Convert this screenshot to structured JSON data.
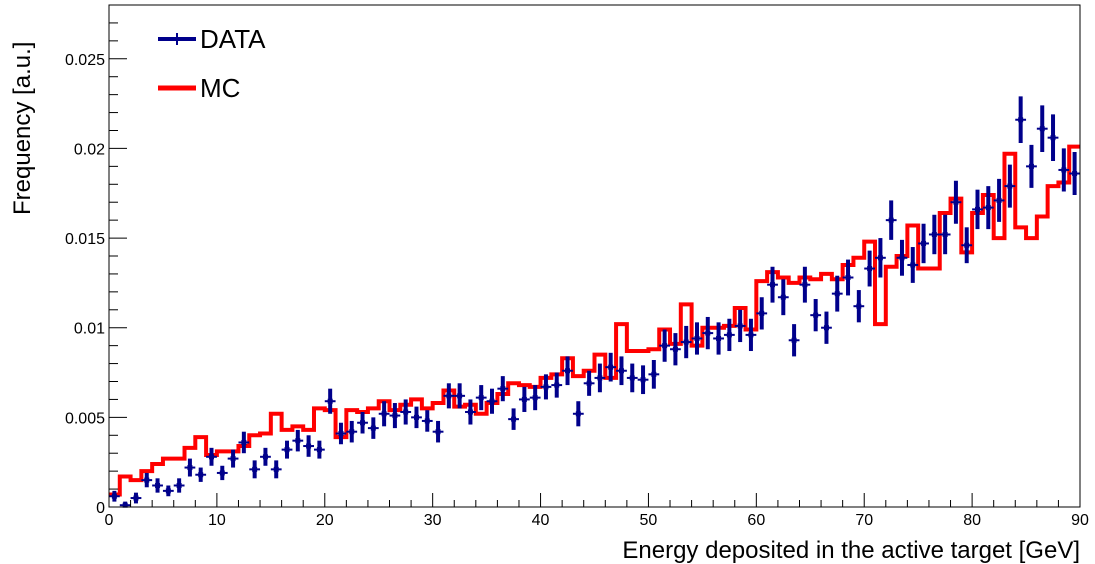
{
  "chart_data": {
    "type": "line",
    "xlabel": "Energy deposited in the active target [GeV]",
    "ylabel": "Frequency [a.u.]",
    "xlim": [
      0,
      90
    ],
    "ylim": [
      0,
      0.028
    ],
    "x_ticks": [
      "0",
      "10",
      "20",
      "30",
      "40",
      "50",
      "60",
      "70",
      "80",
      "90"
    ],
    "y_ticks": [
      "0",
      "0.005",
      "0.01",
      "0.015",
      "0.02",
      "0.025"
    ],
    "legend_position": "top-left",
    "colors": {
      "data": "#00008b",
      "mc": "#ff0000"
    },
    "series": [
      {
        "name": "DATA",
        "style": "points-with-error-bars",
        "x": [
          0.5,
          1.5,
          2.5,
          3.5,
          4.5,
          5.5,
          6.5,
          7.5,
          8.5,
          9.5,
          10.5,
          11.5,
          12.5,
          13.5,
          14.5,
          15.5,
          16.5,
          17.5,
          18.5,
          19.5,
          20.5,
          21.5,
          22.5,
          23.5,
          24.5,
          25.5,
          26.5,
          27.5,
          28.5,
          29.5,
          30.5,
          31.5,
          32.5,
          33.5,
          34.5,
          35.5,
          36.5,
          37.5,
          38.5,
          39.5,
          40.5,
          41.5,
          42.5,
          43.5,
          44.5,
          45.5,
          46.5,
          47.5,
          48.5,
          49.5,
          50.5,
          51.5,
          52.5,
          53.5,
          54.5,
          55.5,
          56.5,
          57.5,
          58.5,
          59.5,
          60.5,
          61.5,
          62.5,
          63.5,
          64.5,
          65.5,
          66.5,
          67.5,
          68.5,
          69.5,
          70.5,
          71.5,
          72.5,
          73.5,
          74.5,
          75.5,
          76.5,
          77.5,
          78.5,
          79.5,
          80.5,
          81.5,
          82.5,
          83.5,
          84.5,
          85.5,
          86.5,
          87.5,
          88.5,
          89.5
        ],
        "y": [
          0.0006,
          0.0001,
          0.0005,
          0.0015,
          0.0012,
          0.0009,
          0.0012,
          0.0022,
          0.0018,
          0.0028,
          0.0019,
          0.0027,
          0.0036,
          0.0021,
          0.0028,
          0.0021,
          0.0032,
          0.0037,
          0.0034,
          0.0032,
          0.0059,
          0.0041,
          0.0042,
          0.0047,
          0.0044,
          0.0052,
          0.0051,
          0.0053,
          0.005,
          0.0048,
          0.0042,
          0.0062,
          0.0062,
          0.0053,
          0.0061,
          0.0059,
          0.0066,
          0.0049,
          0.006,
          0.0061,
          0.0067,
          0.0068,
          0.0076,
          0.0052,
          0.0069,
          0.0072,
          0.0078,
          0.0076,
          0.0072,
          0.0071,
          0.0074,
          0.009,
          0.0088,
          0.0092,
          0.0094,
          0.0097,
          0.0094,
          0.0096,
          0.0101,
          0.0096,
          0.0108,
          0.0124,
          0.0117,
          0.0093,
          0.0124,
          0.0107,
          0.01,
          0.0119,
          0.0128,
          0.0112,
          0.0133,
          0.0139,
          0.016,
          0.0139,
          0.0135,
          0.0147,
          0.0152,
          0.0152,
          0.017,
          0.0146,
          0.0166,
          0.0167,
          0.0171,
          0.0179,
          0.0216,
          0.019,
          0.0211,
          0.0206,
          0.0188,
          0.0186
        ],
        "yerr": [
          0.0003,
          0.0002,
          0.0003,
          0.0004,
          0.0004,
          0.0003,
          0.0004,
          0.0005,
          0.0004,
          0.0005,
          0.0004,
          0.0005,
          0.0006,
          0.0005,
          0.0005,
          0.0005,
          0.0005,
          0.0006,
          0.0006,
          0.0005,
          0.0007,
          0.0006,
          0.0006,
          0.0006,
          0.0006,
          0.0007,
          0.0007,
          0.0007,
          0.0006,
          0.0006,
          0.0006,
          0.0007,
          0.0007,
          0.0007,
          0.0007,
          0.0007,
          0.0007,
          0.0006,
          0.0007,
          0.0007,
          0.0007,
          0.0007,
          0.0008,
          0.0007,
          0.0007,
          0.0008,
          0.0008,
          0.0008,
          0.0008,
          0.0008,
          0.0008,
          0.0009,
          0.0009,
          0.0009,
          0.0009,
          0.0009,
          0.0009,
          0.0009,
          0.0009,
          0.0009,
          0.0009,
          0.001,
          0.001,
          0.0009,
          0.001,
          0.0009,
          0.0009,
          0.001,
          0.001,
          0.0009,
          0.001,
          0.0011,
          0.0011,
          0.001,
          0.001,
          0.0011,
          0.0011,
          0.0011,
          0.0012,
          0.001,
          0.0011,
          0.0012,
          0.0012,
          0.0012,
          0.0013,
          0.0012,
          0.0013,
          0.0013,
          0.0012,
          0.0012
        ]
      },
      {
        "name": "MC",
        "style": "step-histogram",
        "x": [
          0.5,
          1.5,
          2.5,
          3.5,
          4.5,
          5.5,
          6.5,
          7.5,
          8.5,
          9.5,
          10.5,
          11.5,
          12.5,
          13.5,
          14.5,
          15.5,
          16.5,
          17.5,
          18.5,
          19.5,
          20.5,
          21.5,
          22.5,
          23.5,
          24.5,
          25.5,
          26.5,
          27.5,
          28.5,
          29.5,
          30.5,
          31.5,
          32.5,
          33.5,
          34.5,
          35.5,
          36.5,
          37.5,
          38.5,
          39.5,
          40.5,
          41.5,
          42.5,
          43.5,
          44.5,
          45.5,
          46.5,
          47.5,
          48.5,
          49.5,
          50.5,
          51.5,
          52.5,
          53.5,
          54.5,
          55.5,
          56.5,
          57.5,
          58.5,
          59.5,
          60.5,
          61.5,
          62.5,
          63.5,
          64.5,
          65.5,
          66.5,
          67.5,
          68.5,
          69.5,
          70.5,
          71.5,
          72.5,
          73.5,
          74.5,
          75.5,
          76.5,
          77.5,
          78.5,
          79.5,
          80.5,
          81.5,
          82.5,
          83.5,
          84.5,
          85.5,
          86.5,
          87.5,
          88.5,
          89.5
        ],
        "y": [
          0.0007,
          0.0017,
          0.0015,
          0.002,
          0.0024,
          0.0027,
          0.0027,
          0.0033,
          0.0039,
          0.0029,
          0.0031,
          0.0031,
          0.0034,
          0.004,
          0.0041,
          0.0052,
          0.0043,
          0.0045,
          0.0043,
          0.0055,
          0.0054,
          0.0039,
          0.0054,
          0.0053,
          0.0055,
          0.0059,
          0.0054,
          0.0057,
          0.006,
          0.0055,
          0.0058,
          0.0065,
          0.0056,
          0.0057,
          0.0052,
          0.0058,
          0.0063,
          0.0069,
          0.0068,
          0.0067,
          0.0072,
          0.0074,
          0.0083,
          0.0073,
          0.0076,
          0.0085,
          0.0072,
          0.0102,
          0.0087,
          0.0087,
          0.0088,
          0.0099,
          0.0091,
          0.0113,
          0.009,
          0.01,
          0.01,
          0.0101,
          0.0111,
          0.0099,
          0.0126,
          0.0131,
          0.0128,
          0.0125,
          0.0128,
          0.0127,
          0.013,
          0.0127,
          0.0135,
          0.0139,
          0.0148,
          0.0102,
          0.0134,
          0.014,
          0.0157,
          0.0133,
          0.0133,
          0.0164,
          0.0172,
          0.0142,
          0.0164,
          0.0174,
          0.015,
          0.0197,
          0.0156,
          0.015,
          0.0162,
          0.0179,
          0.0181,
          0.0201
        ]
      }
    ]
  }
}
